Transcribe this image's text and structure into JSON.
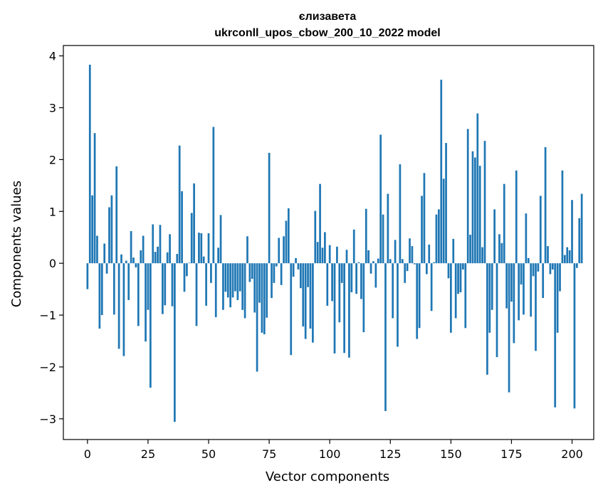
{
  "chart_data": {
    "type": "bar",
    "title": "єлизавета",
    "subtitle": "ukrconll_upos_cbow_200_10_2022 model",
    "xlabel": "Vector components",
    "ylabel": "Components values",
    "xlim": [
      -9.95,
      208.95
    ],
    "ylim": [
      -3.4,
      4.2
    ],
    "xticks": [
      0,
      25,
      50,
      75,
      100,
      125,
      150,
      175,
      200
    ],
    "yticks": [
      -3,
      -2,
      -1,
      0,
      1,
      2,
      3,
      4
    ],
    "ytick_labels": [
      "−3",
      "−2",
      "−1",
      "0",
      "1",
      "2",
      "3",
      "4"
    ],
    "grid": false,
    "color": "#1f77b4",
    "values": [
      -0.5,
      3.83,
      1.31,
      2.51,
      0.53,
      -1.26,
      -1.0,
      0.38,
      -0.2,
      1.08,
      1.31,
      -0.99,
      1.87,
      -1.65,
      0.17,
      -1.79,
      0.05,
      -0.71,
      0.62,
      0.11,
      -0.08,
      -1.21,
      0.25,
      0.53,
      -1.51,
      -0.9,
      -2.4,
      0.75,
      0.22,
      0.32,
      0.74,
      -0.98,
      -0.81,
      0.21,
      0.56,
      -0.83,
      -3.06,
      0.18,
      2.27,
      1.39,
      -0.55,
      -0.25,
      0.01,
      0.97,
      1.54,
      -1.21,
      0.59,
      0.58,
      0.13,
      -0.82,
      0.58,
      -0.38,
      2.63,
      -1.04,
      0.3,
      0.93,
      -0.9,
      -0.55,
      -0.66,
      -0.85,
      -0.66,
      -0.54,
      -0.71,
      -0.54,
      -0.9,
      -1.06,
      0.52,
      -0.36,
      -0.3,
      -0.95,
      -2.09,
      -0.76,
      -1.34,
      -1.37,
      -1.05,
      2.13,
      -0.67,
      -0.38,
      -0.06,
      0.49,
      -0.42,
      0.52,
      0.82,
      1.06,
      -1.77,
      -0.26,
      0.1,
      -0.12,
      -0.48,
      -1.22,
      -1.46,
      -0.46,
      -1.26,
      -1.53,
      1.01,
      0.41,
      1.53,
      0.3,
      0.6,
      -0.82,
      0.35,
      -0.73,
      -1.74,
      0.32,
      -1.14,
      -0.38,
      -1.73,
      0.26,
      -1.82,
      -0.56,
      0.65,
      -0.59,
      0.02,
      -0.69,
      -1.33,
      1.05,
      0.25,
      -0.2,
      0.04,
      -0.47,
      0.09,
      2.48,
      0.94,
      -2.85,
      1.34,
      0.08,
      -1.06,
      0.45,
      -1.61,
      1.91,
      0.08,
      -0.38,
      -0.15,
      0.48,
      0.33,
      -0.02,
      -1.46,
      -1.25,
      1.3,
      1.74,
      -0.21,
      0.36,
      -0.92,
      0.02,
      0.94,
      1.04,
      3.54,
      1.63,
      2.32,
      -0.29,
      -1.34,
      0.47,
      -1.06,
      -0.59,
      -0.56,
      -0.12,
      -1.25,
      2.59,
      0.55,
      2.16,
      2.04,
      2.89,
      1.88,
      0.31,
      2.36,
      -2.15,
      -1.34,
      -0.9,
      1.04,
      -1.81,
      0.56,
      0.39,
      1.53,
      -0.87,
      -2.49,
      -0.74,
      -1.54,
      1.79,
      -1.1,
      -0.41,
      -0.99,
      0.96,
      0.1,
      -1.03,
      -0.25,
      -1.69,
      -0.16,
      1.3,
      -0.67,
      2.24,
      0.33,
      -0.21,
      -0.12,
      -2.78,
      -1.34,
      -0.54,
      1.79,
      0.16,
      0.31,
      0.25,
      1.22,
      -2.8,
      -0.09,
      0.87,
      1.34
    ]
  }
}
